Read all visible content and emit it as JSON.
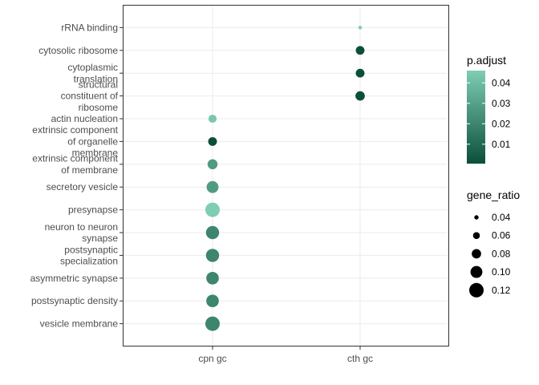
{
  "chart_data": {
    "type": "scatter",
    "x_categories": [
      "cpn gc",
      "cth gc"
    ],
    "y_categories": [
      "rRNA binding",
      "cytosolic ribosome",
      "cytoplasmic translation",
      "structural constituent of ribosome",
      "actin nucleation",
      "extrinsic component of organelle membrane",
      "extrinsic component of membrane",
      "secretory vesicle",
      "presynapse",
      "neuron to neuron synapse",
      "postsynaptic specialization",
      "asymmetric synapse",
      "postsynaptic density",
      "vesicle membrane"
    ],
    "y_label_lines": [
      [
        "rRNA binding"
      ],
      [
        "cytosolic ribosome"
      ],
      [
        "cytoplasmic",
        "translation"
      ],
      [
        "structural",
        "constituent of",
        "ribosome"
      ],
      [
        "actin nucleation"
      ],
      [
        "extrinsic component",
        "of organelle",
        "membrane"
      ],
      [
        "extrinsic component",
        "of membrane"
      ],
      [
        "secretory vesicle"
      ],
      [
        "presynapse"
      ],
      [
        "neuron to neuron",
        "synapse"
      ],
      [
        "postsynaptic",
        "specialization"
      ],
      [
        "asymmetric synapse"
      ],
      [
        "postsynaptic density"
      ],
      [
        "vesicle membrane"
      ]
    ],
    "points": [
      {
        "x": "cth gc",
        "y": "rRNA binding",
        "gene_ratio": 0.035,
        "p_adjust": 0.046
      },
      {
        "x": "cth gc",
        "y": "cytosolic ribosome",
        "gene_ratio": 0.075,
        "p_adjust": 0.0005
      },
      {
        "x": "cth gc",
        "y": "cytoplasmic translation",
        "gene_ratio": 0.075,
        "p_adjust": 0.0005
      },
      {
        "x": "cth gc",
        "y": "structural constituent of ribosome",
        "gene_ratio": 0.08,
        "p_adjust": 0.0005
      },
      {
        "x": "cpn gc",
        "y": "actin nucleation",
        "gene_ratio": 0.07,
        "p_adjust": 0.044
      },
      {
        "x": "cpn gc",
        "y": "extrinsic component of organelle membrane",
        "gene_ratio": 0.075,
        "p_adjust": 0.0005
      },
      {
        "x": "cpn gc",
        "y": "extrinsic component of membrane",
        "gene_ratio": 0.085,
        "p_adjust": 0.028
      },
      {
        "x": "cpn gc",
        "y": "secretory vesicle",
        "gene_ratio": 0.1,
        "p_adjust": 0.028
      },
      {
        "x": "cpn gc",
        "y": "presynapse",
        "gene_ratio": 0.12,
        "p_adjust": 0.046
      },
      {
        "x": "cpn gc",
        "y": "neuron to neuron synapse",
        "gene_ratio": 0.11,
        "p_adjust": 0.02
      },
      {
        "x": "cpn gc",
        "y": "postsynaptic specialization",
        "gene_ratio": 0.11,
        "p_adjust": 0.02
      },
      {
        "x": "cpn gc",
        "y": "asymmetric synapse",
        "gene_ratio": 0.105,
        "p_adjust": 0.02
      },
      {
        "x": "cpn gc",
        "y": "postsynaptic density",
        "gene_ratio": 0.105,
        "p_adjust": 0.02
      },
      {
        "x": "cpn gc",
        "y": "vesicle membrane",
        "gene_ratio": 0.12,
        "p_adjust": 0.02
      }
    ],
    "color_legend": {
      "title": "p.adjust",
      "ticks": [
        0.04,
        0.03,
        0.02,
        0.01
      ],
      "tick_labels": [
        "0.04",
        "0.03",
        "0.02",
        "0.01"
      ],
      "range": [
        0.0005,
        0.046
      ],
      "color_low": "#0b4f3b",
      "color_high": "#7fcdb4"
    },
    "size_legend": {
      "title": "gene_ratio",
      "values": [
        0.04,
        0.06,
        0.08,
        0.1,
        0.12
      ],
      "labels": [
        "0.04",
        "0.06",
        "0.08",
        "0.10",
        "0.12"
      ],
      "range": [
        0.035,
        0.12
      ]
    },
    "grid": true,
    "legend_position": "right"
  }
}
